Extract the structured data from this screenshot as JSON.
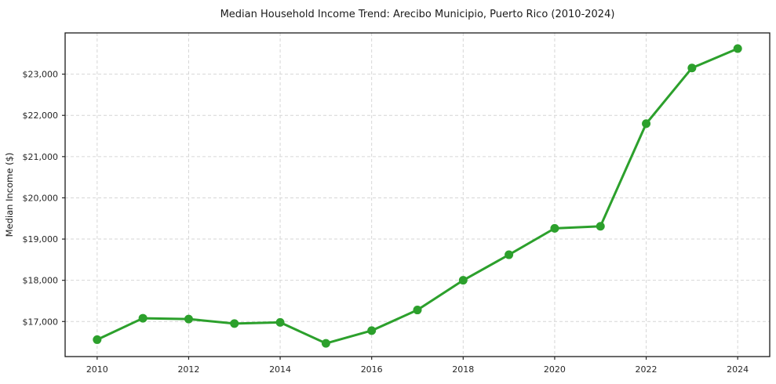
{
  "chart_data": {
    "type": "line",
    "title": "Median Household Income Trend: Arecibo Municipio, Puerto Rico (2010-2024)",
    "xlabel": "",
    "ylabel": "Median Income ($)",
    "x": [
      2010,
      2011,
      2012,
      2013,
      2014,
      2015,
      2016,
      2017,
      2018,
      2019,
      2020,
      2021,
      2022,
      2023,
      2024
    ],
    "series": [
      {
        "name": "Median Household Income",
        "values": [
          16560,
          17080,
          17060,
          16950,
          16980,
          16470,
          16780,
          17280,
          18000,
          18620,
          19260,
          19310,
          21800,
          23150,
          23620
        ],
        "color": "#2ca02c"
      }
    ],
    "x_ticks": [
      2010,
      2012,
      2014,
      2016,
      2018,
      2020,
      2022,
      2024
    ],
    "x_tick_labels": [
      "2010",
      "2012",
      "2014",
      "2016",
      "2018",
      "2020",
      "2022",
      "2024"
    ],
    "y_ticks": [
      17000,
      18000,
      19000,
      20000,
      21000,
      22000,
      23000
    ],
    "y_tick_labels": [
      "$17,000",
      "$18,000",
      "$19,000",
      "$20,000",
      "$21,000",
      "$22,000",
      "$23,000"
    ],
    "xlim": [
      2009.3,
      2024.7
    ],
    "ylim": [
      16150,
      24000
    ],
    "grid": "both, dashed",
    "legend": "none",
    "marker": "circle",
    "colors": {
      "line": "#2ca02c",
      "grid": "#d6d6d6",
      "spine": "#1a1a1a",
      "tick": "#262626",
      "background": "#ffffff"
    }
  }
}
